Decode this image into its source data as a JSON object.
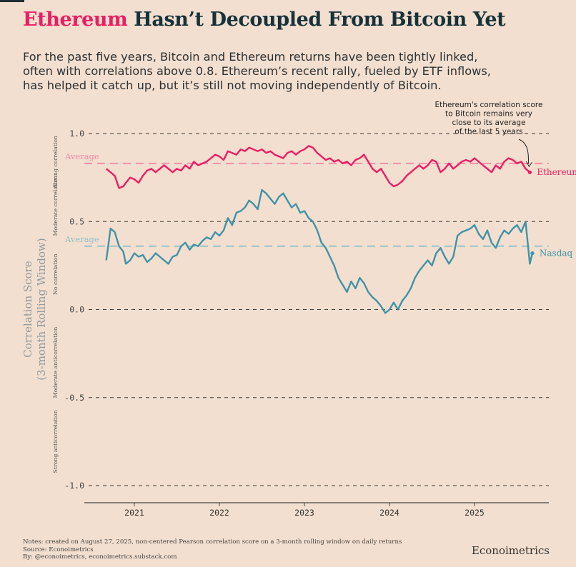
{
  "header": {
    "title_accent": "Ethereum",
    "title_rest": " Hasn’t Decoupled From Bitcoin Yet",
    "subtitle_lines": [
      "For the past five years, Bitcoin and Ethereum returns have been tightly linked,",
      "often with correlations above 0.8. Ethereum’s recent rally, fueled by ETF inflows,",
      "has helped it catch up, but it’s still not moving independently of Bitcoin."
    ]
  },
  "footer": {
    "notes": [
      "Notes: created on August 27, 2025, non-centered Pearson correlation score on a 3-month rolling window on daily returns",
      "Source: Econoimetrics",
      "By: @econoimetrics, econoimetrics.substack.com"
    ],
    "brand": "Econoimetrics"
  },
  "chart_data": {
    "type": "line",
    "ylabel_lines": [
      "Correlation Score",
      "(3-month Rolling Window)"
    ],
    "ylim": [
      -1.05,
      1.05
    ],
    "xlim": [
      2020.55,
      2025.9
    ],
    "yticks": [
      1.0,
      0.5,
      0.0,
      -0.5,
      -1.0
    ],
    "ytick_labels": [
      "1.0",
      "0.5",
      "0.0",
      "-0.5",
      "-1.0"
    ],
    "xticks": [
      2021,
      2022,
      2023,
      2024,
      2025
    ],
    "xtick_labels": [
      "2021",
      "2022",
      "2023",
      "2024",
      "2025"
    ],
    "bands": [
      {
        "label": "Strong correlation",
        "from": 0.68,
        "to": 1.0
      },
      {
        "label": "Moderate correlation",
        "from": 0.5,
        "to": 0.68
      },
      {
        "label": "No correlation",
        "from": -0.1,
        "to": 0.5
      },
      {
        "label": "Moderate anticorrelation",
        "from": -0.5,
        "to": -0.1
      },
      {
        "label": "Strong anticorrelation",
        "from": -1.0,
        "to": -0.5
      }
    ],
    "annotation": {
      "lines": [
        "Ethereum's correlation score",
        "to Bitcoin remains very",
        "close to its average",
        "of the last 5 years"
      ],
      "target_x": 2025.65,
      "target_y": 0.78
    },
    "series": [
      {
        "name": "Ethereum",
        "color": "#ee1c63",
        "average": 0.83,
        "average_label": "Average",
        "x": [
          2020.67,
          2020.72,
          2020.77,
          2020.82,
          2020.87,
          2020.9,
          2020.95,
          2021.0,
          2021.05,
          2021.1,
          2021.15,
          2021.2,
          2021.25,
          2021.3,
          2021.35,
          2021.4,
          2021.45,
          2021.5,
          2021.55,
          2021.6,
          2021.65,
          2021.7,
          2021.75,
          2021.8,
          2021.85,
          2021.9,
          2021.95,
          2022.0,
          2022.05,
          2022.1,
          2022.15,
          2022.2,
          2022.25,
          2022.3,
          2022.35,
          2022.4,
          2022.45,
          2022.5,
          2022.55,
          2022.6,
          2022.65,
          2022.7,
          2022.75,
          2022.8,
          2022.85,
          2022.9,
          2022.95,
          2023.0,
          2023.05,
          2023.1,
          2023.15,
          2023.2,
          2023.25,
          2023.3,
          2023.35,
          2023.4,
          2023.45,
          2023.5,
          2023.55,
          2023.6,
          2023.65,
          2023.7,
          2023.75,
          2023.8,
          2023.85,
          2023.9,
          2023.95,
          2024.0,
          2024.05,
          2024.1,
          2024.15,
          2024.2,
          2024.25,
          2024.3,
          2024.35,
          2024.4,
          2024.45,
          2024.5,
          2024.55,
          2024.6,
          2024.65,
          2024.7,
          2024.75,
          2024.8,
          2024.85,
          2024.9,
          2024.95,
          2025.0,
          2025.05,
          2025.1,
          2025.15,
          2025.2,
          2025.25,
          2025.3,
          2025.35,
          2025.4,
          2025.45,
          2025.5,
          2025.55,
          2025.6,
          2025.65
        ],
        "y": [
          0.8,
          0.78,
          0.76,
          0.69,
          0.7,
          0.72,
          0.75,
          0.74,
          0.72,
          0.76,
          0.79,
          0.8,
          0.78,
          0.8,
          0.82,
          0.8,
          0.78,
          0.8,
          0.79,
          0.82,
          0.8,
          0.84,
          0.82,
          0.83,
          0.84,
          0.86,
          0.88,
          0.87,
          0.85,
          0.9,
          0.89,
          0.88,
          0.91,
          0.9,
          0.92,
          0.91,
          0.9,
          0.91,
          0.89,
          0.9,
          0.88,
          0.87,
          0.86,
          0.89,
          0.9,
          0.88,
          0.9,
          0.91,
          0.93,
          0.92,
          0.89,
          0.87,
          0.85,
          0.86,
          0.84,
          0.85,
          0.83,
          0.84,
          0.82,
          0.85,
          0.86,
          0.88,
          0.84,
          0.8,
          0.78,
          0.8,
          0.76,
          0.72,
          0.7,
          0.71,
          0.73,
          0.76,
          0.78,
          0.8,
          0.82,
          0.8,
          0.82,
          0.85,
          0.84,
          0.78,
          0.8,
          0.83,
          0.8,
          0.82,
          0.84,
          0.85,
          0.84,
          0.86,
          0.84,
          0.82,
          0.8,
          0.78,
          0.82,
          0.8,
          0.84,
          0.86,
          0.85,
          0.83,
          0.84,
          0.8,
          0.78
        ]
      },
      {
        "name": "Nasdaq",
        "color": "#3f93a8",
        "average": 0.36,
        "average_label": "Average",
        "x": [
          2020.67,
          2020.72,
          2020.77,
          2020.82,
          2020.87,
          2020.9,
          2020.95,
          2021.0,
          2021.05,
          2021.1,
          2021.15,
          2021.2,
          2021.25,
          2021.3,
          2021.35,
          2021.4,
          2021.45,
          2021.5,
          2021.55,
          2021.6,
          2021.65,
          2021.7,
          2021.75,
          2021.8,
          2021.85,
          2021.9,
          2021.95,
          2022.0,
          2022.05,
          2022.1,
          2022.15,
          2022.2,
          2022.25,
          2022.3,
          2022.35,
          2022.4,
          2022.45,
          2022.5,
          2022.55,
          2022.6,
          2022.65,
          2022.7,
          2022.75,
          2022.8,
          2022.85,
          2022.9,
          2022.95,
          2023.0,
          2023.05,
          2023.1,
          2023.15,
          2023.2,
          2023.25,
          2023.3,
          2023.35,
          2023.4,
          2023.45,
          2023.5,
          2023.55,
          2023.6,
          2023.65,
          2023.7,
          2023.75,
          2023.8,
          2023.85,
          2023.9,
          2023.95,
          2024.0,
          2024.05,
          2024.1,
          2024.15,
          2024.2,
          2024.25,
          2024.3,
          2024.35,
          2024.4,
          2024.45,
          2024.5,
          2024.55,
          2024.6,
          2024.65,
          2024.7,
          2024.75,
          2024.8,
          2024.85,
          2024.9,
          2024.95,
          2025.0,
          2025.05,
          2025.1,
          2025.15,
          2025.2,
          2025.25,
          2025.3,
          2025.35,
          2025.4,
          2025.45,
          2025.5,
          2025.55,
          2025.6,
          2025.65,
          2025.68
        ],
        "y": [
          0.28,
          0.46,
          0.44,
          0.36,
          0.33,
          0.26,
          0.28,
          0.32,
          0.3,
          0.31,
          0.27,
          0.29,
          0.32,
          0.3,
          0.28,
          0.26,
          0.3,
          0.31,
          0.36,
          0.38,
          0.34,
          0.37,
          0.36,
          0.39,
          0.41,
          0.4,
          0.44,
          0.42,
          0.45,
          0.52,
          0.48,
          0.55,
          0.56,
          0.58,
          0.62,
          0.6,
          0.57,
          0.68,
          0.66,
          0.63,
          0.6,
          0.64,
          0.66,
          0.62,
          0.58,
          0.6,
          0.55,
          0.56,
          0.52,
          0.5,
          0.45,
          0.38,
          0.35,
          0.3,
          0.25,
          0.18,
          0.14,
          0.1,
          0.16,
          0.12,
          0.18,
          0.15,
          0.1,
          0.07,
          0.05,
          0.02,
          -0.02,
          0.0,
          0.04,
          0.0,
          0.05,
          0.08,
          0.12,
          0.18,
          0.22,
          0.25,
          0.28,
          0.25,
          0.32,
          0.35,
          0.3,
          0.26,
          0.3,
          0.42,
          0.44,
          0.45,
          0.46,
          0.48,
          0.43,
          0.4,
          0.45,
          0.38,
          0.35,
          0.41,
          0.45,
          0.43,
          0.46,
          0.48,
          0.44,
          0.5,
          0.26,
          0.32
        ]
      }
    ]
  }
}
